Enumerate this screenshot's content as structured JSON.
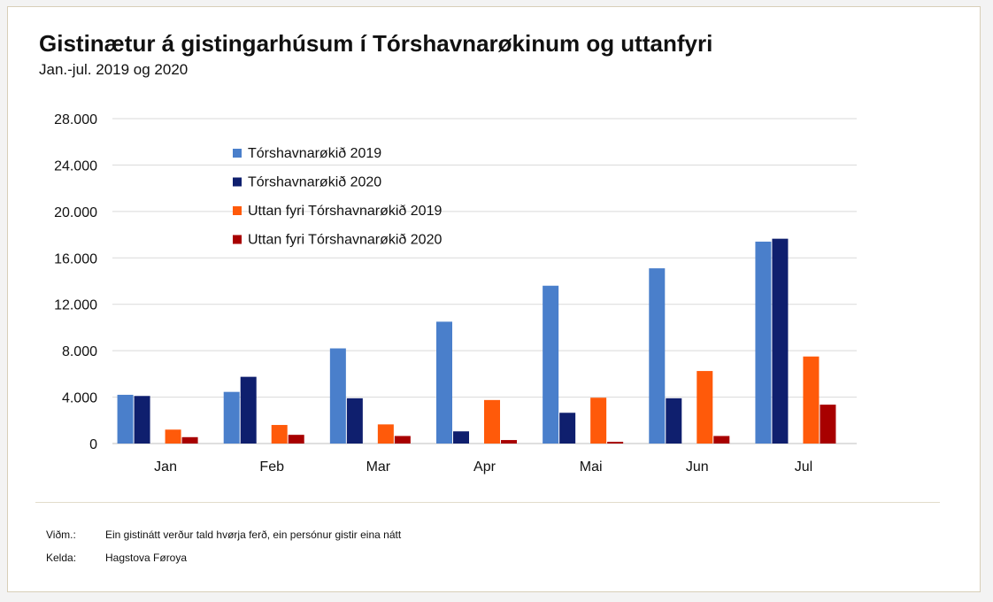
{
  "title": "Gistinætur á gistingarhúsum í Tórshavnarøkinum og uttanfyri",
  "subtitle": "Jan.-jul. 2019 og 2020",
  "footer": {
    "note_label": "Viðm.:",
    "note_text": "Ein gistinátt verður tald hvørja ferð, ein persónur gistir eina nátt",
    "source_label": "Kelda:",
    "source_text": "Hagstova Føroya"
  },
  "colors": {
    "gridline": "#d9d9d9",
    "axis": "#bfbfbf",
    "text": "#111111"
  },
  "chart_data": {
    "type": "bar",
    "categories": [
      "Jan",
      "Feb",
      "Mar",
      "Apr",
      "Mai",
      "Jun",
      "Jul"
    ],
    "ylim": [
      0,
      28000
    ],
    "yticks": [
      0,
      4000,
      8000,
      12000,
      16000,
      20000,
      24000,
      28000
    ],
    "ytick_labels": [
      "0",
      "4.000",
      "8.000",
      "12.000",
      "16.000",
      "20.000",
      "24.000",
      "28.000"
    ],
    "grid": true,
    "legend_position": "top-left inside plot",
    "series": [
      {
        "name": "Tórshavnarøkið 2019",
        "color": "#4a7fcb",
        "values": [
          4200,
          4450,
          8200,
          10500,
          13600,
          15100,
          17400
        ]
      },
      {
        "name": "Tórshavnarøkið 2020",
        "color": "#0f1f6e",
        "values": [
          4100,
          5750,
          3900,
          1050,
          2650,
          3900,
          17650
        ]
      },
      {
        "name": "Uttan fyri Tórshavnarøkið 2019",
        "color": "#ff5a0a",
        "values": [
          1200,
          1600,
          1650,
          3750,
          3950,
          6250,
          7500
        ]
      },
      {
        "name": "Uttan fyri Tórshavnarøkið 2020",
        "color": "#a80000",
        "values": [
          550,
          750,
          650,
          300,
          150,
          650,
          3350
        ]
      }
    ]
  }
}
